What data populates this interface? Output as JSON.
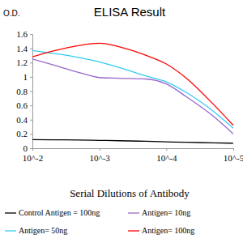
{
  "chart_data": {
    "type": "line",
    "title": "ELISA Result",
    "y_label": "O.D.",
    "x_label": "Serial Dilutions of Antibody",
    "log": "x",
    "x": [
      0.01,
      0.005,
      0.002,
      0.001,
      0.0005,
      0.0002,
      0.0001,
      5e-05,
      2e-05,
      1e-05
    ],
    "xlim": [
      0.01,
      1e-05
    ],
    "xticks": [
      {
        "value": 0.01,
        "label": "10^-2"
      },
      {
        "value": 0.001,
        "label": "10^-3"
      },
      {
        "value": 0.0001,
        "label": "10^-4"
      },
      {
        "value": 1e-05,
        "label": "10^-5"
      }
    ],
    "ylim": [
      0,
      1.6
    ],
    "yticks": [
      0,
      0.2,
      0.4,
      0.6,
      0.8,
      1,
      1.2,
      1.4,
      1.6
    ],
    "legend": "bottom",
    "series": [
      {
        "name": "Control Antigen = 100ng",
        "color": "#000000",
        "values": [
          0.12,
          0.118,
          0.115,
          0.11,
          0.105,
          0.097,
          0.09,
          0.083,
          0.076,
          0.07
        ]
      },
      {
        "name": "Antigen= 10ng",
        "color": "#9966cc",
        "values": [
          1.25,
          1.17,
          1.06,
          0.99,
          0.98,
          0.97,
          0.9,
          0.72,
          0.45,
          0.2
        ]
      },
      {
        "name": "Antigen= 50ng",
        "color": "#33ccee",
        "values": [
          1.37,
          1.33,
          1.27,
          1.21,
          1.13,
          1.01,
          0.93,
          0.78,
          0.52,
          0.28
        ]
      },
      {
        "name": "Antigen= 100ng",
        "color": "#ff0000",
        "values": [
          1.28,
          1.36,
          1.44,
          1.47,
          1.42,
          1.3,
          1.18,
          0.98,
          0.62,
          0.32
        ]
      }
    ]
  }
}
